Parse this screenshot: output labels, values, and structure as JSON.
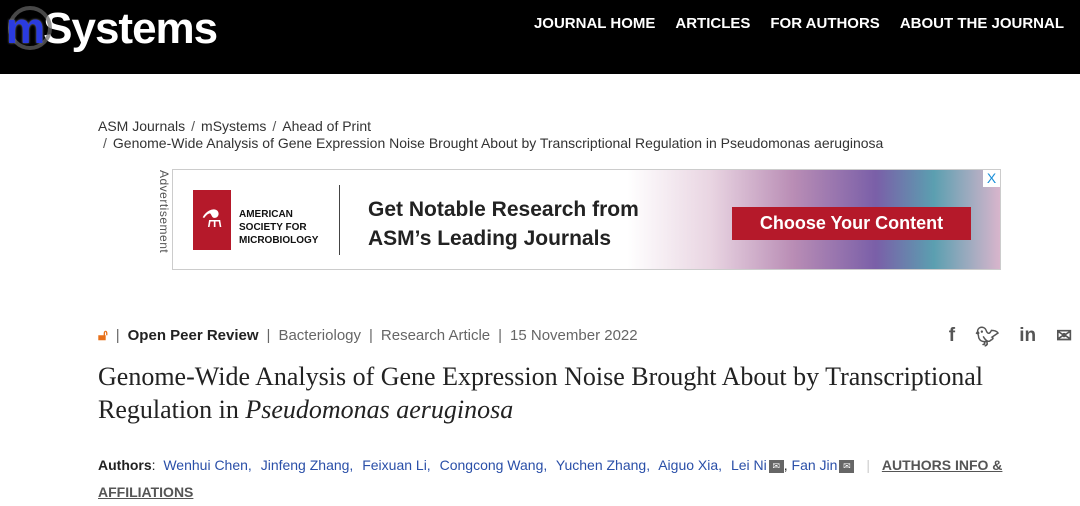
{
  "header": {
    "logo": {
      "m": "m",
      "rest": "Systems"
    },
    "nav": [
      "JOURNAL HOME",
      "ARTICLES",
      "FOR AUTHORS",
      "ABOUT THE JOURNAL"
    ]
  },
  "breadcrumb": [
    "ASM Journals",
    "mSystems",
    "Ahead of Print",
    "Genome-Wide Analysis of Gene Expression Noise Brought About by Transcriptional Regulation in Pseudomonas aeruginosa"
  ],
  "ad": {
    "label": "Advertisement",
    "org": "AMERICAN SOCIETY FOR MICROBIOLOGY",
    "headline1": "Get Notable Research from",
    "headline2": "ASM’s Leading Journals",
    "cta": "Choose Your Content",
    "close": "X",
    "brand_color": "#b5192a"
  },
  "meta": {
    "access_icon": "open-access-icon",
    "review": "Open Peer Review",
    "subject": "Bacteriology",
    "type": "Research Article",
    "date": "15 November 2022"
  },
  "share": [
    "facebook-icon",
    "twitter-icon",
    "linkedin-icon",
    "email-icon"
  ],
  "article": {
    "title_plain": "Genome-Wide Analysis of Gene Expression Noise Brought About by Transcriptional Regulation in ",
    "title_italic": "Pseudomonas aeruginosa"
  },
  "authors": {
    "label": "Authors",
    "list": [
      "Wenhui Chen,",
      "Jinfeng Zhang,",
      "Feixuan Li,",
      "Congcong Wang,",
      "Yuchen Zhang,",
      "Aiguo Xia,",
      "Lei Ni",
      "Fan Jin"
    ],
    "info": "AUTHORS INFO & AFFILIATIONS"
  }
}
